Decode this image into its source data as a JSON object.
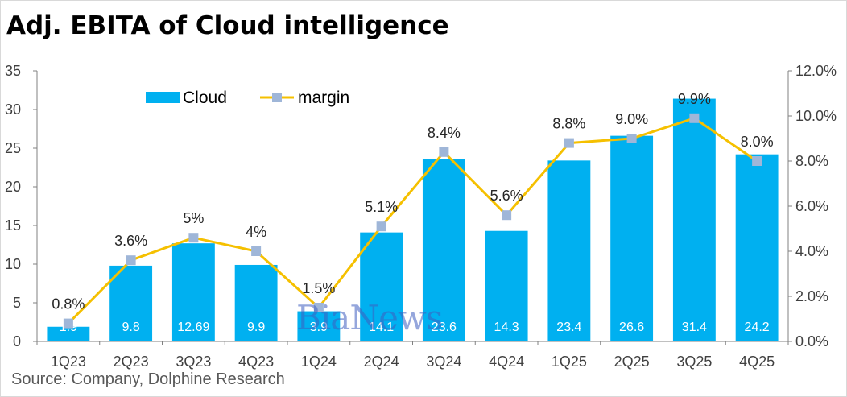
{
  "title": "Adj. EBITA of Cloud intelligence",
  "source": "Source: Company, Dolphine Research",
  "watermark_text": "BiaNews",
  "chart_data": {
    "type": "bar",
    "categories": [
      "1Q23",
      "2Q23",
      "3Q23",
      "4Q23",
      "1Q24",
      "2Q24",
      "3Q24",
      "4Q24",
      "1Q25",
      "2Q25",
      "3Q25",
      "4Q25"
    ],
    "series": [
      {
        "name": "Cloud",
        "type": "bar",
        "axis": "left",
        "color": "#00b0f0",
        "values": [
          1.9,
          9.8,
          12.69,
          9.9,
          3.9,
          14.1,
          23.6,
          14.3,
          23.4,
          26.6,
          31.4,
          24.2
        ],
        "labels": [
          "1.9",
          "9.8",
          "12.69",
          "9.9",
          "3.9",
          "14.1",
          "23.6",
          "14.3",
          "23.4",
          "26.6",
          "31.4",
          "24.2"
        ]
      },
      {
        "name": "margin",
        "type": "line",
        "axis": "right",
        "line_color": "#f5c000",
        "marker_color": "#9fb6d8",
        "values": [
          0.8,
          3.6,
          4.6,
          4.0,
          1.5,
          5.1,
          8.4,
          5.6,
          8.8,
          9.0,
          9.9,
          8.0
        ],
        "labels": [
          "0.8%",
          "3.6%",
          "5%",
          "4%",
          "1.5%",
          "5.1%",
          "8.4%",
          "5.6%",
          "8.8%",
          "9.0%",
          "9.9%",
          "8.0%"
        ]
      }
    ],
    "y_left": {
      "min": 0,
      "max": 35,
      "ticks": [
        "0",
        "5",
        "10",
        "15",
        "20",
        "25",
        "30",
        "35"
      ]
    },
    "y_right": {
      "min": 0,
      "max": 12,
      "ticks": [
        "0.0%",
        "2.0%",
        "4.0%",
        "6.0%",
        "8.0%",
        "10.0%",
        "12.0%"
      ]
    },
    "legend_position": "top-left",
    "grid": false
  }
}
